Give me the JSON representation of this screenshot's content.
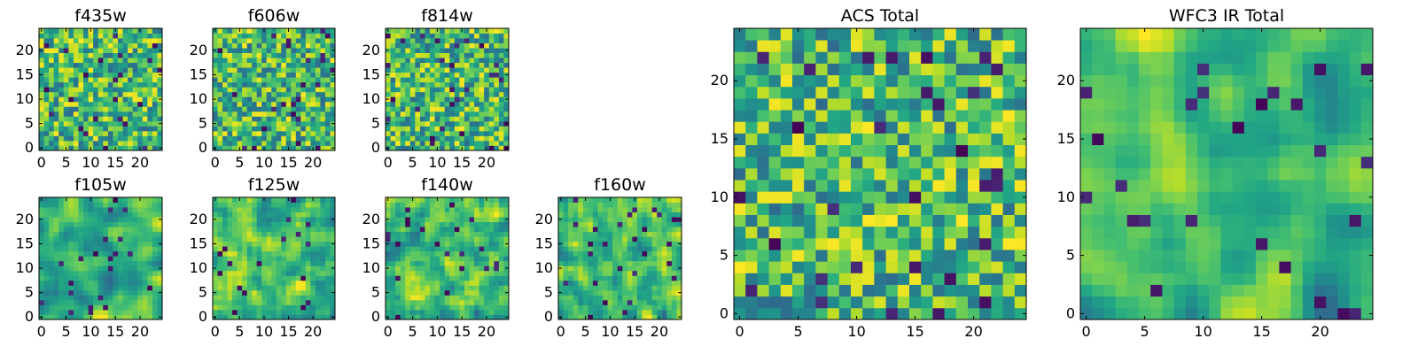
{
  "figure": {
    "description_free": true
  },
  "chart_data": [
    {
      "type": "heatmap",
      "title": "f435w",
      "rows": 25,
      "cols": 25,
      "xticks": [
        0,
        5,
        10,
        15,
        20
      ],
      "yticks": [
        0,
        5,
        10,
        15,
        20
      ],
      "xlim": [
        -0.5,
        24.5
      ],
      "ylim": [
        -0.5,
        24.5
      ],
      "seed": 11,
      "smooth": 0,
      "colormap": "viridis"
    },
    {
      "type": "heatmap",
      "title": "f606w",
      "rows": 25,
      "cols": 25,
      "xticks": [
        0,
        5,
        10,
        15,
        20
      ],
      "yticks": [
        0,
        5,
        10,
        15,
        20
      ],
      "xlim": [
        -0.5,
        24.5
      ],
      "ylim": [
        -0.5,
        24.5
      ],
      "seed": 23,
      "smooth": 0,
      "colormap": "viridis"
    },
    {
      "type": "heatmap",
      "title": "f814w",
      "rows": 25,
      "cols": 25,
      "xticks": [
        0,
        5,
        10,
        15,
        20
      ],
      "yticks": [
        0,
        5,
        10,
        15,
        20
      ],
      "xlim": [
        -0.5,
        24.5
      ],
      "ylim": [
        -0.5,
        24.5
      ],
      "seed": 37,
      "smooth": 0,
      "colormap": "viridis"
    },
    {
      "type": "heatmap",
      "title": "f105w",
      "rows": 25,
      "cols": 25,
      "xticks": [
        0,
        5,
        10,
        15,
        20
      ],
      "yticks": [
        0,
        5,
        10,
        15,
        20
      ],
      "xlim": [
        -0.5,
        24.5
      ],
      "ylim": [
        -0.5,
        24.5
      ],
      "seed": 41,
      "smooth": 2,
      "colormap": "viridis"
    },
    {
      "type": "heatmap",
      "title": "f125w",
      "rows": 25,
      "cols": 25,
      "xticks": [
        0,
        5,
        10,
        15,
        20
      ],
      "yticks": [
        0,
        5,
        10,
        15,
        20
      ],
      "xlim": [
        -0.5,
        24.5
      ],
      "ylim": [
        -0.5,
        24.5
      ],
      "seed": 53,
      "smooth": 1,
      "colormap": "viridis"
    },
    {
      "type": "heatmap",
      "title": "f140w",
      "rows": 25,
      "cols": 25,
      "xticks": [
        0,
        5,
        10,
        15,
        20
      ],
      "yticks": [
        0,
        5,
        10,
        15,
        20
      ],
      "xlim": [
        -0.5,
        24.5
      ],
      "ylim": [
        -0.5,
        24.5
      ],
      "seed": 67,
      "smooth": 1,
      "colormap": "viridis"
    },
    {
      "type": "heatmap",
      "title": "f160w",
      "rows": 25,
      "cols": 25,
      "xticks": [
        0,
        5,
        10,
        15,
        20
      ],
      "yticks": [
        0,
        5,
        10,
        15,
        20
      ],
      "xlim": [
        -0.5,
        24.5
      ],
      "ylim": [
        -0.5,
        24.5
      ],
      "seed": 79,
      "smooth": 1,
      "colormap": "viridis"
    },
    {
      "type": "heatmap",
      "title": "ACS Total",
      "rows": 25,
      "cols": 25,
      "xticks": [
        0,
        5,
        10,
        15,
        20
      ],
      "yticks": [
        0,
        5,
        10,
        15,
        20
      ],
      "xlim": [
        -0.5,
        24.5
      ],
      "ylim": [
        -0.5,
        24.5
      ],
      "seed": 97,
      "smooth": 0,
      "colormap": "viridis"
    },
    {
      "type": "heatmap",
      "title": "WFC3 IR Total",
      "rows": 25,
      "cols": 25,
      "xticks": [
        0,
        5,
        10,
        15,
        20
      ],
      "yticks": [
        0,
        5,
        10,
        15,
        20
      ],
      "xlim": [
        -0.5,
        24.5
      ],
      "ylim": [
        -0.5,
        24.5
      ],
      "seed": 131,
      "smooth": 2,
      "colormap": "viridis"
    }
  ]
}
